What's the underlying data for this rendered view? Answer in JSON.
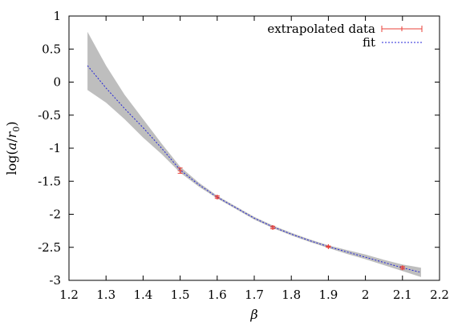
{
  "chart_data": {
    "type": "line",
    "xlabel": "β",
    "ylabel_parts": {
      "func": "log(",
      "num": "a",
      "sep": "/",
      "den": "r",
      "sub": "0",
      "close": ")"
    },
    "xlim": [
      1.2,
      2.2
    ],
    "ylim": [
      -3,
      1
    ],
    "x_ticks": [
      1.2,
      1.3,
      1.4,
      1.5,
      1.6,
      1.7,
      1.8,
      1.9,
      2.0,
      2.1,
      2.2
    ],
    "x_tick_labels": [
      "1.2",
      "1.3",
      "1.4",
      "1.5",
      "1.6",
      "1.7",
      "1.8",
      "1.9",
      "2",
      "2.1",
      "2.2"
    ],
    "y_ticks": [
      1,
      0.5,
      0,
      -0.5,
      -1,
      -1.5,
      -2,
      -2.5,
      -3
    ],
    "y_tick_labels": [
      "1",
      "0.5",
      "0",
      "-0.5",
      "-1",
      "-1.5",
      "-2",
      "-2.5",
      "-3"
    ],
    "grid": false,
    "legend_position": "top-right",
    "colors": {
      "data": "#e8413a",
      "fit": "#2424d8",
      "band": "#bebebe",
      "axes": "#000000"
    },
    "series": [
      {
        "name": "extrapolated data",
        "kind": "points-with-errorbars",
        "points": [
          {
            "x": 1.5,
            "y": -1.34,
            "err": 0.04
          },
          {
            "x": 1.6,
            "y": -1.74,
            "err": 0.02
          },
          {
            "x": 1.75,
            "y": -2.2,
            "err": 0.02
          },
          {
            "x": 1.9,
            "y": -2.49,
            "err": 0.01
          },
          {
            "x": 2.1,
            "y": -2.81,
            "err": 0.02
          }
        ]
      },
      {
        "name": "fit",
        "kind": "dotted-line",
        "curve": [
          {
            "x": 1.25,
            "y": 0.25
          },
          {
            "x": 1.3,
            "y": -0.09
          },
          {
            "x": 1.35,
            "y": -0.4
          },
          {
            "x": 1.4,
            "y": -0.69
          },
          {
            "x": 1.45,
            "y": -1.0
          },
          {
            "x": 1.5,
            "y": -1.33
          },
          {
            "x": 1.55,
            "y": -1.55
          },
          {
            "x": 1.6,
            "y": -1.74
          },
          {
            "x": 1.65,
            "y": -1.9
          },
          {
            "x": 1.7,
            "y": -2.06
          },
          {
            "x": 1.75,
            "y": -2.19
          },
          {
            "x": 1.8,
            "y": -2.3
          },
          {
            "x": 1.85,
            "y": -2.4
          },
          {
            "x": 1.9,
            "y": -2.49
          },
          {
            "x": 1.95,
            "y": -2.57
          },
          {
            "x": 2.0,
            "y": -2.65
          },
          {
            "x": 2.05,
            "y": -2.73
          },
          {
            "x": 2.1,
            "y": -2.81
          },
          {
            "x": 2.15,
            "y": -2.88
          }
        ]
      }
    ],
    "error_band": [
      {
        "x": 1.25,
        "lo": -0.12,
        "hi": 0.76
      },
      {
        "x": 1.3,
        "lo": -0.31,
        "hi": 0.25
      },
      {
        "x": 1.35,
        "lo": -0.56,
        "hi": -0.19
      },
      {
        "x": 1.4,
        "lo": -0.84,
        "hi": -0.56
      },
      {
        "x": 1.45,
        "lo": -1.09,
        "hi": -0.93
      },
      {
        "x": 1.5,
        "lo": -1.37,
        "hi": -1.28
      },
      {
        "x": 1.55,
        "lo": -1.58,
        "hi": -1.52
      },
      {
        "x": 1.6,
        "lo": -1.76,
        "hi": -1.72
      },
      {
        "x": 1.65,
        "lo": -1.92,
        "hi": -1.88
      },
      {
        "x": 1.7,
        "lo": -2.08,
        "hi": -2.04
      },
      {
        "x": 1.75,
        "lo": -2.21,
        "hi": -2.17
      },
      {
        "x": 1.8,
        "lo": -2.32,
        "hi": -2.28
      },
      {
        "x": 1.85,
        "lo": -2.42,
        "hi": -2.38
      },
      {
        "x": 1.9,
        "lo": -2.51,
        "hi": -2.47
      },
      {
        "x": 1.95,
        "lo": -2.6,
        "hi": -2.54
      },
      {
        "x": 2.0,
        "lo": -2.68,
        "hi": -2.61
      },
      {
        "x": 2.05,
        "lo": -2.77,
        "hi": -2.69
      },
      {
        "x": 2.1,
        "lo": -2.86,
        "hi": -2.76
      },
      {
        "x": 2.15,
        "lo": -2.95,
        "hi": -2.81
      }
    ]
  }
}
